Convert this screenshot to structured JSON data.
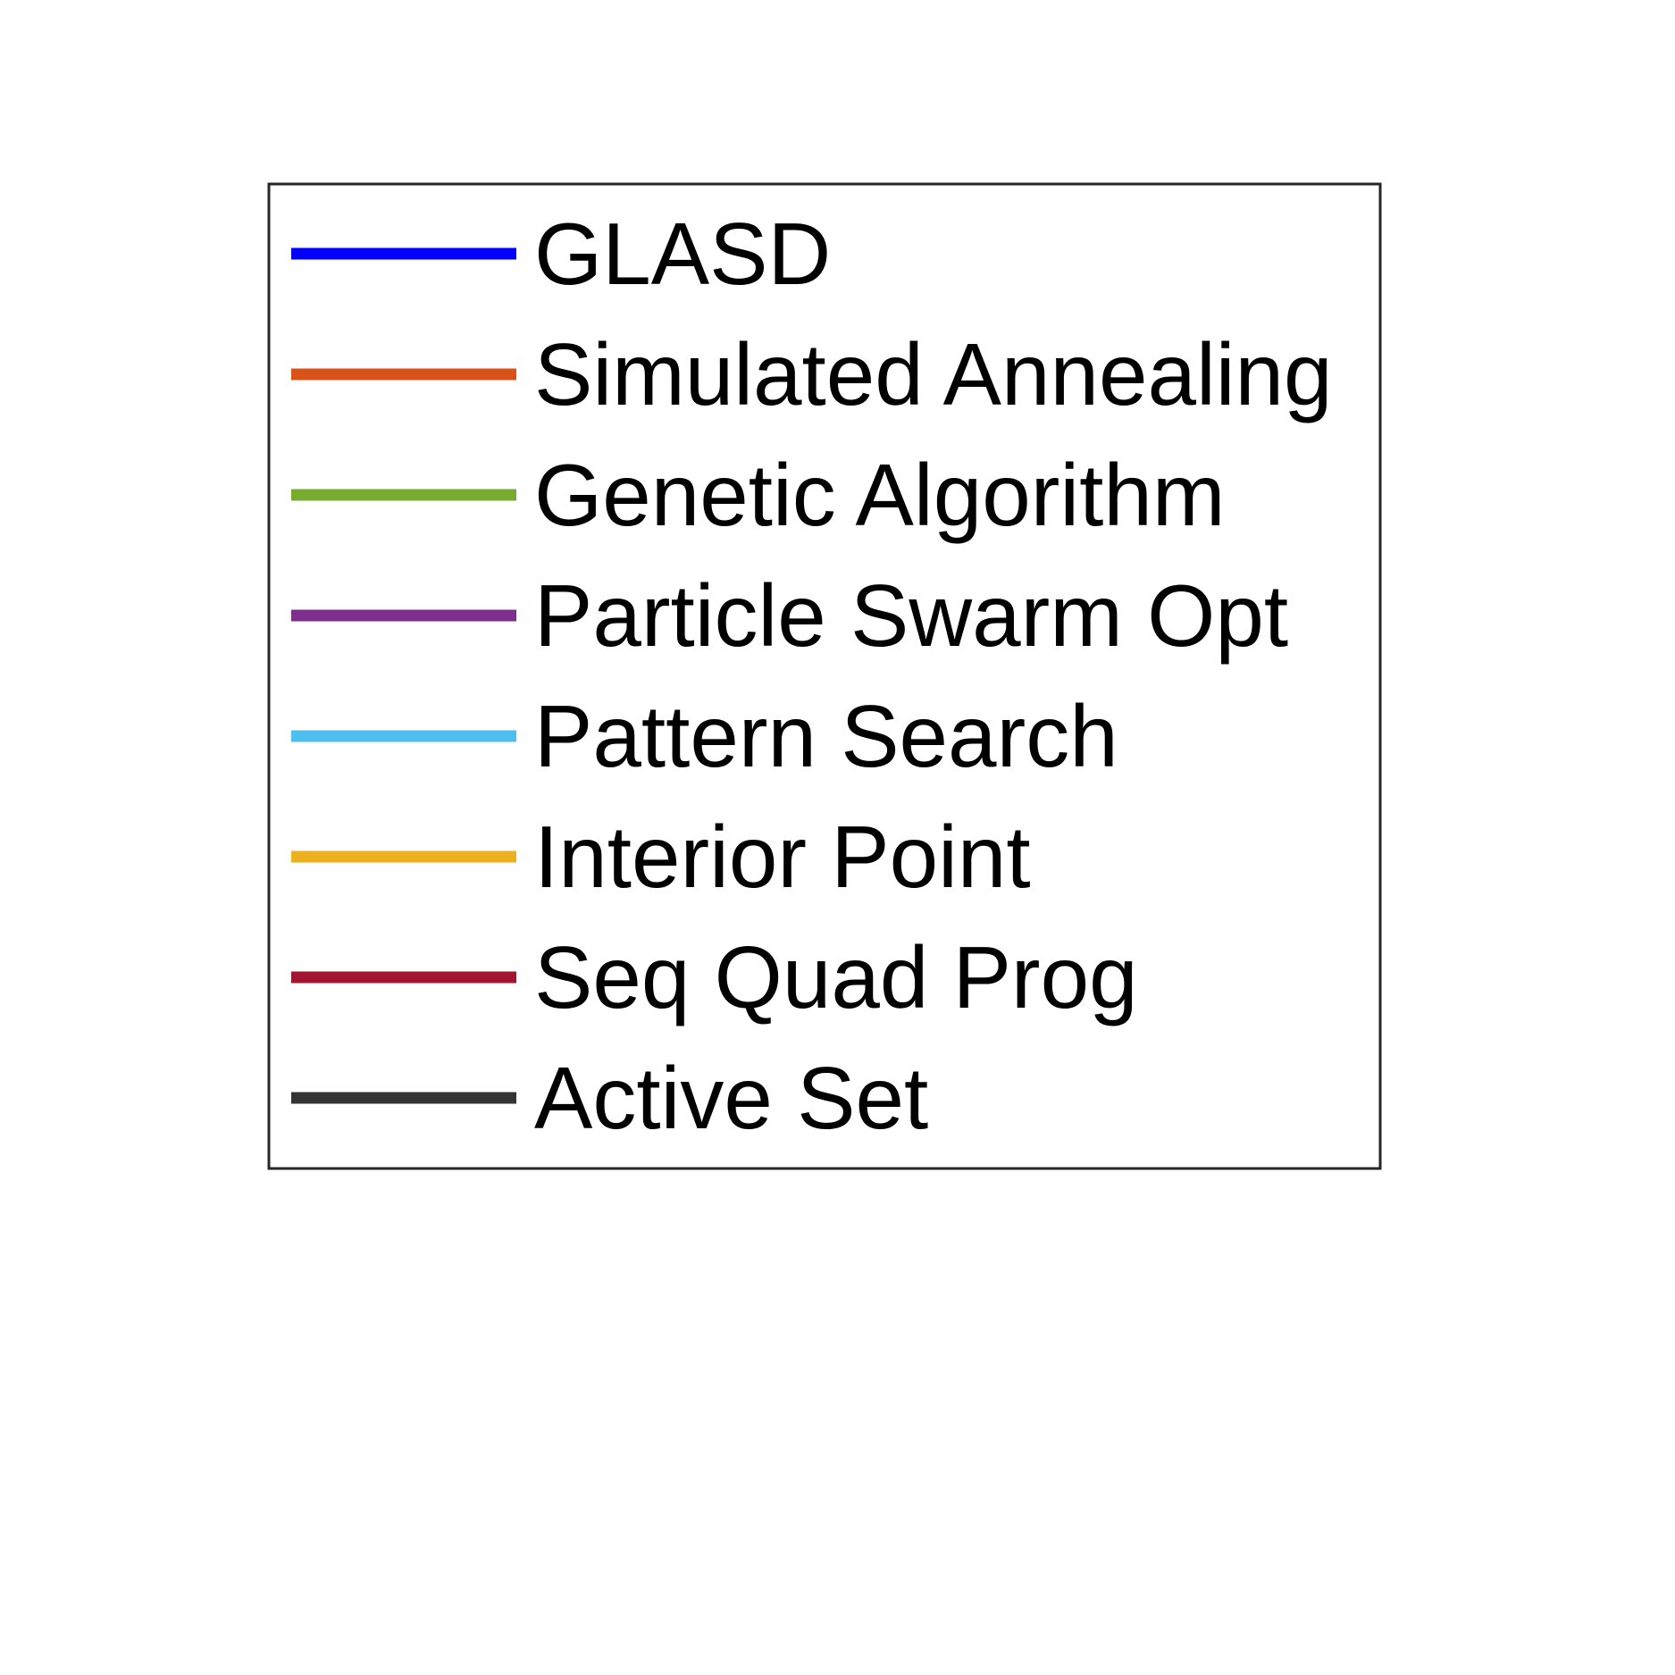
{
  "chart_data": {
    "type": "line",
    "legend": {
      "placement": "center",
      "entries": [
        {
          "label": "GLASD",
          "color": "#0000FF"
        },
        {
          "label": "Simulated Annealing",
          "color": "#D95319"
        },
        {
          "label": "Genetic Algorithm",
          "color": "#77AC30"
        },
        {
          "label": "Particle Swarm Opt",
          "color": "#7E2F8E"
        },
        {
          "label": "Pattern Search",
          "color": "#4DBEEE"
        },
        {
          "label": "Interior Point",
          "color": "#EDB120"
        },
        {
          "label": "Seq Quad Prog",
          "color": "#A2142F"
        },
        {
          "label": "Active Set",
          "color": "#333333"
        }
      ]
    }
  }
}
